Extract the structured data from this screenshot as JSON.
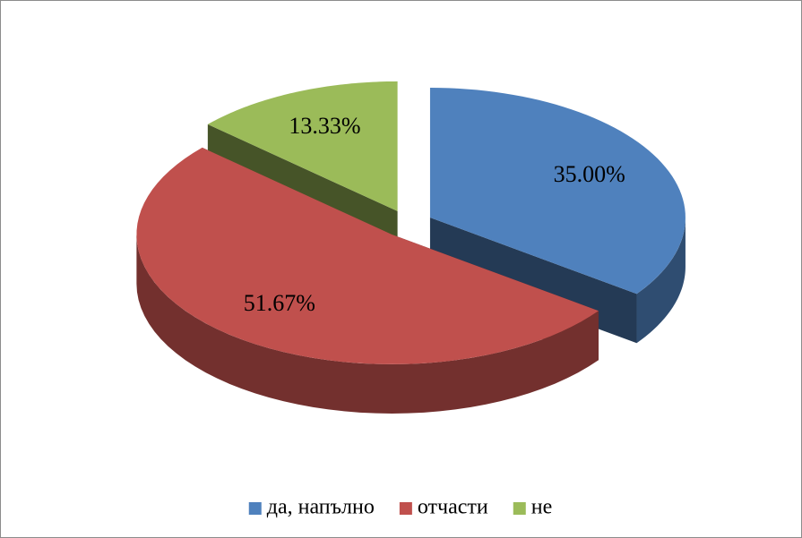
{
  "chart_data": {
    "type": "pie",
    "categories": [
      "да, напълно",
      "отчасти",
      "не"
    ],
    "values": [
      35,
      51.67,
      13.33
    ],
    "value_labels": [
      "35.00%",
      "51.67%",
      "13.33%"
    ],
    "colors": [
      "#4f81bd",
      "#c0504d",
      "#9bbb59"
    ],
    "legend": "bottom"
  }
}
